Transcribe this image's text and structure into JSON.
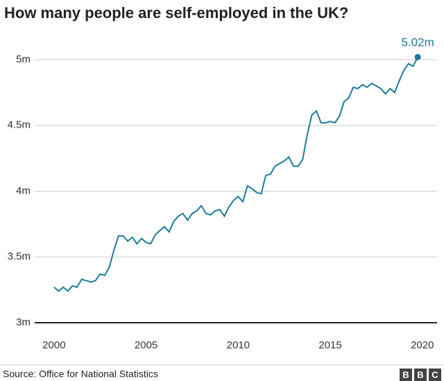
{
  "chart_data": {
    "type": "line",
    "title": "How many people are self-employed in the UK?",
    "source": "Source: Office for National Statistics",
    "logo": [
      "B",
      "B",
      "C"
    ],
    "color": "#1b7b9b",
    "x": [
      2000,
      2000.25,
      2000.5,
      2000.75,
      2001,
      2001.25,
      2001.5,
      2001.75,
      2002,
      2002.25,
      2002.5,
      2002.75,
      2003,
      2003.25,
      2003.5,
      2003.75,
      2004,
      2004.25,
      2004.5,
      2004.75,
      2005,
      2005.25,
      2005.5,
      2005.75,
      2006,
      2006.25,
      2006.5,
      2006.75,
      2007,
      2007.25,
      2007.5,
      2007.75,
      2008,
      2008.25,
      2008.5,
      2008.75,
      2009,
      2009.25,
      2009.5,
      2009.75,
      2010,
      2010.25,
      2010.5,
      2010.75,
      2011,
      2011.25,
      2011.5,
      2011.75,
      2012,
      2012.25,
      2012.5,
      2012.75,
      2013,
      2013.25,
      2013.5,
      2013.75,
      2014,
      2014.25,
      2014.5,
      2014.75,
      2015,
      2015.25,
      2015.5,
      2015.75,
      2016,
      2016.25,
      2016.5,
      2016.75,
      2017,
      2017.25,
      2017.5,
      2017.75,
      2018,
      2018.25,
      2018.5,
      2018.75,
      2019,
      2019.25,
      2019.5,
      2019.75
    ],
    "values": [
      3.27,
      3.24,
      3.27,
      3.24,
      3.28,
      3.27,
      3.33,
      3.32,
      3.31,
      3.32,
      3.37,
      3.36,
      3.42,
      3.55,
      3.66,
      3.66,
      3.62,
      3.65,
      3.6,
      3.64,
      3.61,
      3.6,
      3.67,
      3.7,
      3.73,
      3.69,
      3.77,
      3.81,
      3.83,
      3.78,
      3.83,
      3.85,
      3.89,
      3.83,
      3.82,
      3.85,
      3.86,
      3.81,
      3.88,
      3.93,
      3.96,
      3.92,
      4.04,
      4.02,
      3.99,
      3.98,
      4.12,
      4.13,
      4.19,
      4.21,
      4.23,
      4.26,
      4.19,
      4.19,
      4.24,
      4.43,
      4.58,
      4.61,
      4.52,
      4.52,
      4.53,
      4.52,
      4.57,
      4.68,
      4.71,
      4.79,
      4.78,
      4.81,
      4.79,
      4.82,
      4.8,
      4.78,
      4.74,
      4.78,
      4.75,
      4.84,
      4.92,
      4.97,
      4.95,
      5.02
    ],
    "value_labels": [
      null,
      null,
      null,
      null,
      null,
      null,
      null,
      null,
      null,
      null,
      null,
      null,
      null,
      null,
      null,
      null,
      null,
      null,
      null,
      null,
      null,
      null,
      null,
      null,
      null,
      null,
      null,
      null,
      null,
      null,
      null,
      null,
      null,
      null,
      null,
      null,
      null,
      null,
      null,
      null,
      null,
      null,
      null,
      null,
      null,
      null,
      null,
      null,
      null,
      null,
      null,
      null,
      null,
      null,
      null,
      null,
      null,
      null,
      null,
      null,
      null,
      null,
      null,
      null,
      null,
      null,
      null,
      null,
      null,
      null,
      null,
      null,
      null,
      null,
      null,
      null,
      null,
      null,
      null,
      "5.02m"
    ],
    "xlim": [
      1998.95,
      2020.8
    ],
    "xticks": [
      2000,
      2005,
      2010,
      2015,
      2020
    ],
    "ylim": [
      3,
      5
    ],
    "yticks": [
      {
        "value": 3,
        "label": "3m"
      },
      {
        "value": 3.5,
        "label": "3.5m"
      },
      {
        "value": 4,
        "label": "4m"
      },
      {
        "value": 4.5,
        "label": "4.5m"
      },
      {
        "value": 5,
        "label": "5m"
      }
    ],
    "grid": true
  }
}
